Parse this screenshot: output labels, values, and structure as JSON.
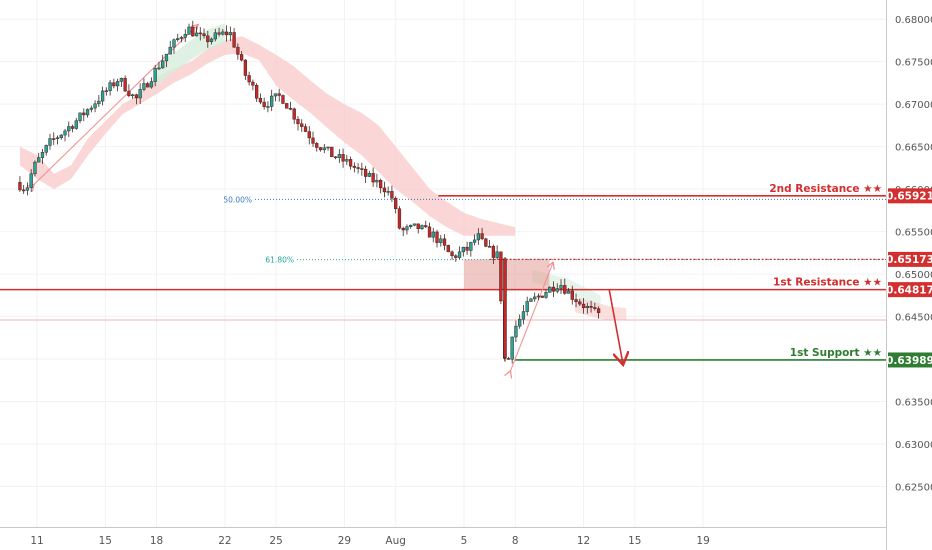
{
  "chart_data": {
    "type": "candlestick",
    "title": "",
    "xlabel": "",
    "ylabel": "",
    "ylim": [
      0.6202,
      0.6823
    ],
    "x_ticks": [
      {
        "label": "11",
        "day": 11
      },
      {
        "label": "15",
        "day": 15
      },
      {
        "label": "18",
        "day": 18
      },
      {
        "label": "22",
        "day": 22
      },
      {
        "label": "25",
        "day": 25
      },
      {
        "label": "29",
        "day": 29
      },
      {
        "label": "Aug",
        "day": 32
      },
      {
        "label": "5",
        "day": 36
      },
      {
        "label": "8",
        "day": 39
      },
      {
        "label": "12",
        "day": 43
      },
      {
        "label": "15",
        "day": 46
      },
      {
        "label": "19",
        "day": 50
      }
    ],
    "y_ticks": [
      "0.62500",
      "0.63000",
      "0.63500",
      "0.64000",
      "0.64500",
      "0.65000",
      "0.65500",
      "0.66000",
      "0.66500",
      "0.67000",
      "0.67500",
      "0.68000"
    ],
    "series": [
      {
        "price_path": [
          {
            "day": 10.0,
            "price": 0.6608
          },
          {
            "day": 10.6,
            "price": 0.66
          },
          {
            "day": 11.0,
            "price": 0.6625
          },
          {
            "day": 12.0,
            "price": 0.6655
          },
          {
            "day": 13.5,
            "price": 0.668
          },
          {
            "day": 15.0,
            "price": 0.671
          },
          {
            "day": 16.0,
            "price": 0.673
          },
          {
            "day": 17.0,
            "price": 0.6705
          },
          {
            "day": 18.0,
            "price": 0.6735
          },
          {
            "day": 19.0,
            "price": 0.6765
          },
          {
            "day": 20.0,
            "price": 0.679
          },
          {
            "day": 21.0,
            "price": 0.6775
          },
          {
            "day": 22.5,
            "price": 0.6785
          },
          {
            "day": 23.5,
            "price": 0.673
          },
          {
            "day": 24.5,
            "price": 0.67
          },
          {
            "day": 25.5,
            "price": 0.671
          },
          {
            "day": 26.5,
            "price": 0.668
          },
          {
            "day": 27.5,
            "price": 0.6655
          },
          {
            "day": 28.5,
            "price": 0.664
          },
          {
            "day": 29.5,
            "price": 0.663
          },
          {
            "day": 30.5,
            "price": 0.6615
          },
          {
            "day": 31.5,
            "price": 0.6603
          },
          {
            "day": 32.0,
            "price": 0.659
          },
          {
            "day": 32.5,
            "price": 0.655
          },
          {
            "day": 33.5,
            "price": 0.6555
          },
          {
            "day": 34.5,
            "price": 0.6545
          },
          {
            "day": 35.5,
            "price": 0.652
          },
          {
            "day": 36.5,
            "price": 0.653
          },
          {
            "day": 37.0,
            "price": 0.6545
          },
          {
            "day": 37.5,
            "price": 0.653
          },
          {
            "day": 38.3,
            "price": 0.652
          },
          {
            "day": 38.5,
            "price": 0.64
          },
          {
            "day": 39.0,
            "price": 0.643
          },
          {
            "day": 40.0,
            "price": 0.6465
          },
          {
            "day": 41.0,
            "price": 0.648
          },
          {
            "day": 41.8,
            "price": 0.649
          },
          {
            "day": 42.5,
            "price": 0.6475
          },
          {
            "day": 43.3,
            "price": 0.6462
          },
          {
            "day": 44.0,
            "price": 0.6452
          }
        ]
      }
    ],
    "levels": [
      {
        "name": "2nd Resistance ★★",
        "value": "0.65921",
        "color": "#d32f2f"
      },
      {
        "name": "",
        "value": "0.65173",
        "color": "#d32f2f"
      },
      {
        "name": "1st Resistance ★★",
        "value": "0.64817",
        "color": "#d32f2f"
      },
      {
        "name": "1st Support ★★",
        "value": "0.63989",
        "color": "#2e7d32"
      }
    ],
    "fibonacci": [
      {
        "label": "50.00%",
        "value": 0.6588,
        "color": "#3b78c2"
      },
      {
        "label": "61.80%",
        "value": 0.6517,
        "color": "#26a69a"
      }
    ],
    "colors": {
      "up": "#26a69a",
      "down": "#c62828",
      "candle_body": "#4e342e",
      "cloud": "#f8c8c8",
      "cloud_green": "#d6eddb",
      "zone": "#e39a95",
      "trend": "#f08c8c",
      "grid": "#f2f2f2",
      "axis_text": "#555555"
    }
  }
}
